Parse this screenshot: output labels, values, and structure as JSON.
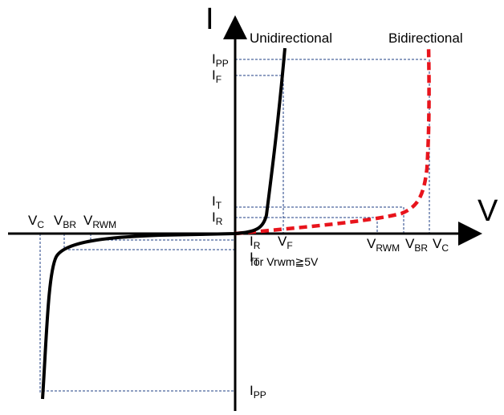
{
  "axes": {
    "x_label": "V",
    "y_label": "I"
  },
  "curves": {
    "unidirectional": {
      "label": "Unidirectional",
      "color": "#000000"
    },
    "bidirectional": {
      "label": "Bidirectional",
      "color": "#e8141c"
    }
  },
  "labels": {
    "ipp_top": {
      "main": "I",
      "sub": "PP"
    },
    "if": {
      "main": "I",
      "sub": "F"
    },
    "it_top": {
      "main": "I",
      "sub": "T"
    },
    "ir_top": {
      "main": "I",
      "sub": "R"
    },
    "ir_bottom": {
      "main": "I",
      "sub": "R"
    },
    "it_bottom": {
      "main": "I",
      "sub": "T"
    },
    "ipp_bottom": {
      "main": "I",
      "sub": "PP"
    },
    "vf": {
      "main": "V",
      "sub": "F"
    },
    "vf_note": "for Vrwm≧5V",
    "vc_left": {
      "main": "V",
      "sub": "C"
    },
    "vbr_left": {
      "main": "V",
      "sub": "BR"
    },
    "vrwm_left": {
      "main": "V",
      "sub": "RWM"
    },
    "vrwm_right": {
      "main": "V",
      "sub": "RWM"
    },
    "vbr_right": {
      "main": "V",
      "sub": "BR"
    },
    "vc_right": {
      "main": "V",
      "sub": "C"
    }
  },
  "colors": {
    "guide": "#1f3f86",
    "axis": "#000000"
  }
}
